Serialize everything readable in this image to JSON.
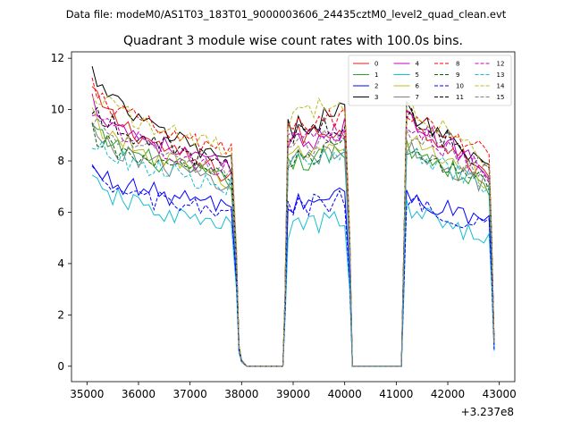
{
  "chart_data": {
    "type": "line",
    "suptitle": "Data file: modeM0/AS1T03_183T01_9000003606_24435cztM0_level2_quad_clean.evt",
    "title": "Quadrant 3 module wise count rates with 100.0s bins.",
    "xlabel": "",
    "ylabel": "",
    "x_offset_label": "+3.237e8",
    "xlim": [
      34700,
      43300
    ],
    "ylim": [
      -0.6,
      12.25
    ],
    "x_ticks": [
      35000,
      36000,
      37000,
      38000,
      39000,
      40000,
      41000,
      42000,
      43000
    ],
    "x_tick_labels": [
      "35000",
      "36000",
      "37000",
      "38000",
      "39000",
      "40000",
      "41000",
      "42000",
      "43000"
    ],
    "y_ticks": [
      0,
      2,
      4,
      6,
      8,
      10,
      12
    ],
    "y_tick_labels": [
      "0",
      "2",
      "4",
      "6",
      "8",
      "10",
      "12"
    ],
    "legend": {
      "placement": "top-right",
      "columns": 4
    },
    "segments": [
      {
        "start": 35100,
        "end": 37800
      },
      {
        "start": 38900,
        "end": 40000
      },
      {
        "start": 41200,
        "end": 42800
      }
    ],
    "drop_profile": [
      {
        "x": 37900,
        "f": 0.55
      },
      {
        "x": 37950,
        "f": 0.1
      },
      {
        "x": 38000,
        "f": 0.03
      },
      {
        "x": 38100,
        "f": 0
      },
      {
        "x": 38800,
        "f": 0
      },
      {
        "x": 38850,
        "f": 0.4
      },
      {
        "x": 40100,
        "f": 0.5
      },
      {
        "x": 40150,
        "f": 0
      },
      {
        "x": 41100,
        "f": 0
      },
      {
        "x": 41150,
        "f": 0.5
      },
      {
        "x": 42850,
        "f": 0.65
      },
      {
        "x": 42900,
        "f": 0.12
      }
    ],
    "series": [
      {
        "name": "0",
        "color": "#e41a1c",
        "dash": false,
        "levels": [
          [
            10.8,
            7.4
          ],
          [
            8.9,
            9.3
          ],
          [
            9.8,
            7.3
          ]
        ]
      },
      {
        "name": "1",
        "color": "#2ca02c",
        "dash": false,
        "levels": [
          [
            9.3,
            7.2
          ],
          [
            7.8,
            8.3
          ],
          [
            8.6,
            6.9
          ]
        ]
      },
      {
        "name": "2",
        "color": "#0000ff",
        "dash": false,
        "levels": [
          [
            7.7,
            6.2
          ],
          [
            6.2,
            6.8
          ],
          [
            6.6,
            5.6
          ]
        ]
      },
      {
        "name": "3",
        "color": "#000000",
        "dash": false,
        "levels": [
          [
            11.5,
            7.9
          ],
          [
            9.2,
            10.0
          ],
          [
            10.0,
            7.9
          ]
        ]
      },
      {
        "name": "4",
        "color": "#c000c0",
        "dash": false,
        "levels": [
          [
            10.4,
            7.7
          ],
          [
            8.5,
            9.3
          ],
          [
            9.6,
            7.6
          ]
        ]
      },
      {
        "name": "5",
        "color": "#17becf",
        "dash": false,
        "levels": [
          [
            7.2,
            5.4
          ],
          [
            5.3,
            5.8
          ],
          [
            6.1,
            5.0
          ]
        ]
      },
      {
        "name": "6",
        "color": "#bcbd22",
        "dash": false,
        "levels": [
          [
            9.8,
            7.2
          ],
          [
            8.1,
            8.6
          ],
          [
            8.9,
            7.2
          ]
        ]
      },
      {
        "name": "7",
        "color": "#7f7f7f",
        "dash": false,
        "levels": [
          [
            9.2,
            7.1
          ],
          [
            8.0,
            8.3
          ],
          [
            8.6,
            7.0
          ]
        ]
      },
      {
        "name": "8",
        "color": "#ff0000",
        "dash": true,
        "levels": [
          [
            10.9,
            8.3
          ],
          [
            9.2,
            9.8
          ],
          [
            10.0,
            8.2
          ]
        ]
      },
      {
        "name": "9",
        "color": "#006400",
        "dash": true,
        "levels": [
          [
            9.1,
            7.3
          ],
          [
            7.9,
            8.5
          ],
          [
            8.5,
            7.1
          ]
        ]
      },
      {
        "name": "10",
        "color": "#0000ff",
        "dash": true,
        "levels": [
          [
            7.4,
            5.9
          ],
          [
            6.1,
            6.5
          ],
          [
            6.4,
            5.5
          ]
        ]
      },
      {
        "name": "11",
        "color": "#000000",
        "dash": true,
        "levels": [
          [
            10.2,
            7.8
          ],
          [
            9.0,
            9.4
          ],
          [
            9.8,
            7.8
          ]
        ]
      },
      {
        "name": "12",
        "color": "#c000c0",
        "dash": true,
        "levels": [
          [
            10.1,
            7.6
          ],
          [
            8.6,
            9.1
          ],
          [
            9.4,
            7.5
          ]
        ]
      },
      {
        "name": "13",
        "color": "#17becf",
        "dash": true,
        "levels": [
          [
            8.8,
            7.0
          ],
          [
            7.8,
            8.2
          ],
          [
            8.4,
            6.9
          ]
        ]
      },
      {
        "name": "14",
        "color": "#bcbd22",
        "dash": true,
        "levels": [
          [
            10.8,
            8.5
          ],
          [
            9.6,
            10.3
          ],
          [
            10.2,
            8.0
          ]
        ]
      },
      {
        "name": "15",
        "color": "#7f7f7f",
        "dash": true,
        "levels": [
          [
            9.6,
            7.5
          ],
          [
            8.4,
            9.0
          ],
          [
            9.2,
            7.4
          ]
        ]
      }
    ]
  }
}
